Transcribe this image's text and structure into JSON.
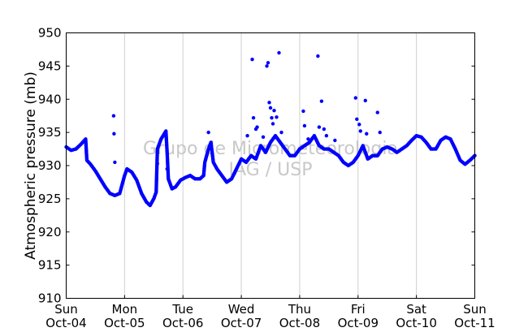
{
  "chart_data": {
    "type": "scatter",
    "title": "",
    "xlabel": "",
    "ylabel": "Atmospheric pressure (mb)",
    "ylim": [
      910,
      950
    ],
    "yticks": [
      910,
      915,
      920,
      925,
      930,
      935,
      940,
      945,
      950
    ],
    "xlim": [
      "2009-10-04T00:00",
      "2009-10-11T00:00"
    ],
    "xticks": [
      {
        "day": "Sun",
        "date": "Oct-04"
      },
      {
        "day": "Mon",
        "date": "Oct-05"
      },
      {
        "day": "Tue",
        "date": "Oct-06"
      },
      {
        "day": "Wed",
        "date": "Oct-07"
      },
      {
        "day": "Thu",
        "date": "Oct-08"
      },
      {
        "day": "Fri",
        "date": "Oct-09"
      },
      {
        "day": "Sat",
        "date": "Oct-10"
      },
      {
        "day": "Sun",
        "date": "Oct-11"
      }
    ],
    "grid": "vertical",
    "marker_color": "#0000ff",
    "watermark": [
      "Grupo de Micrometeorologia",
      "IAG / USP"
    ],
    "series": [
      {
        "trace": [
          [
            "2009-10-04T00:00",
            932.8
          ],
          [
            "2009-10-04T02:00",
            932.3
          ],
          [
            "2009-10-04T04:00",
            932.5
          ],
          [
            "2009-10-04T06:00",
            933.2
          ],
          [
            "2009-10-04T08:00",
            934.0
          ],
          [
            "2009-10-04T08:30",
            930.8
          ],
          [
            "2009-10-04T10:00",
            930.2
          ],
          [
            "2009-10-04T12:00",
            929.2
          ],
          [
            "2009-10-04T14:00",
            928.0
          ],
          [
            "2009-10-04T16:00",
            926.8
          ],
          [
            "2009-10-04T18:00",
            925.8
          ],
          [
            "2009-10-04T20:00",
            925.5
          ],
          [
            "2009-10-04T22:00",
            925.8
          ],
          [
            "2009-10-05T00:00",
            928.5
          ],
          [
            "2009-10-05T01:00",
            929.5
          ],
          [
            "2009-10-05T03:00",
            929.0
          ],
          [
            "2009-10-05T05:00",
            927.8
          ],
          [
            "2009-10-05T07:00",
            925.8
          ],
          [
            "2009-10-05T09:00",
            924.5
          ],
          [
            "2009-10-05T10:30",
            924.0
          ],
          [
            "2009-10-05T12:00",
            925.0
          ],
          [
            "2009-10-05T13:00",
            926.0
          ],
          [
            "2009-10-05T13:30",
            932.5
          ],
          [
            "2009-10-05T15:00",
            934.0
          ],
          [
            "2009-10-05T17:00",
            935.2
          ],
          [
            "2009-10-05T17:30",
            932.0
          ],
          [
            "2009-10-05T18:00",
            928.0
          ],
          [
            "2009-10-05T19:30",
            926.5
          ],
          [
            "2009-10-05T21:00",
            926.8
          ],
          [
            "2009-10-05T23:00",
            927.8
          ],
          [
            "2009-10-06T01:00",
            928.2
          ],
          [
            "2009-10-06T03:00",
            928.5
          ],
          [
            "2009-10-06T05:00",
            928.0
          ],
          [
            "2009-10-06T07:00",
            928.0
          ],
          [
            "2009-10-06T08:30",
            928.5
          ],
          [
            "2009-10-06T09:00",
            930.5
          ],
          [
            "2009-10-06T10:30",
            932.5
          ],
          [
            "2009-10-06T11:30",
            933.5
          ],
          [
            "2009-10-06T12:30",
            930.5
          ],
          [
            "2009-10-06T14:00",
            929.5
          ],
          [
            "2009-10-06T16:00",
            928.5
          ],
          [
            "2009-10-06T18:00",
            927.5
          ],
          [
            "2009-10-06T20:00",
            928.0
          ],
          [
            "2009-10-06T22:00",
            929.5
          ],
          [
            "2009-10-07T00:00",
            931.0
          ],
          [
            "2009-10-07T02:00",
            930.5
          ],
          [
            "2009-10-07T04:00",
            931.5
          ],
          [
            "2009-10-07T06:00",
            931.0
          ],
          [
            "2009-10-07T08:00",
            933.0
          ],
          [
            "2009-10-07T10:00",
            932.0
          ],
          [
            "2009-10-07T12:00",
            933.5
          ],
          [
            "2009-10-07T14:00",
            934.5
          ],
          [
            "2009-10-07T16:00",
            933.5
          ],
          [
            "2009-10-07T18:00",
            932.5
          ],
          [
            "2009-10-07T20:00",
            931.5
          ],
          [
            "2009-10-07T22:00",
            931.5
          ],
          [
            "2009-10-08T00:00",
            932.5
          ],
          [
            "2009-10-08T02:00",
            933.0
          ],
          [
            "2009-10-08T04:00",
            933.5
          ],
          [
            "2009-10-08T06:00",
            934.5
          ],
          [
            "2009-10-08T08:00",
            933.0
          ],
          [
            "2009-10-08T10:00",
            932.5
          ],
          [
            "2009-10-08T12:00",
            932.5
          ],
          [
            "2009-10-08T14:00",
            932.0
          ],
          [
            "2009-10-08T16:00",
            931.5
          ],
          [
            "2009-10-08T18:00",
            930.5
          ],
          [
            "2009-10-08T20:00",
            930.0
          ],
          [
            "2009-10-08T22:00",
            930.5
          ],
          [
            "2009-10-09T00:00",
            931.5
          ],
          [
            "2009-10-09T02:00",
            933.0
          ],
          [
            "2009-10-09T04:00",
            931.0
          ],
          [
            "2009-10-09T06:00",
            931.5
          ],
          [
            "2009-10-09T08:00",
            931.5
          ],
          [
            "2009-10-09T10:00",
            932.5
          ],
          [
            "2009-10-09T12:00",
            932.8
          ],
          [
            "2009-10-09T14:00",
            932.5
          ],
          [
            "2009-10-09T16:00",
            932.0
          ],
          [
            "2009-10-09T18:00",
            932.5
          ],
          [
            "2009-10-09T20:00",
            933.0
          ],
          [
            "2009-10-09T22:00",
            933.8
          ],
          [
            "2009-10-10T00:00",
            934.5
          ],
          [
            "2009-10-10T02:00",
            934.3
          ],
          [
            "2009-10-10T04:00",
            933.5
          ],
          [
            "2009-10-10T06:00",
            932.5
          ],
          [
            "2009-10-10T08:00",
            932.5
          ],
          [
            "2009-10-10T10:00",
            933.8
          ],
          [
            "2009-10-10T12:00",
            934.3
          ],
          [
            "2009-10-10T14:00",
            934.0
          ],
          [
            "2009-10-10T16:00",
            932.5
          ],
          [
            "2009-10-10T18:00",
            930.8
          ],
          [
            "2009-10-10T20:00",
            930.2
          ],
          [
            "2009-10-10T22:00",
            930.8
          ],
          [
            "2009-10-11T00:00",
            931.5
          ]
        ],
        "spikes": [
          [
            "2009-10-04T19:30",
            937.5
          ],
          [
            "2009-10-04T19:40",
            934.8
          ],
          [
            "2009-10-04T20:00",
            930.5
          ],
          [
            "2009-10-05T13:30",
            930.3
          ],
          [
            "2009-10-05T17:30",
            929.5
          ],
          [
            "2009-10-06T10:30",
            935.0
          ],
          [
            "2009-10-07T02:30",
            934.5
          ],
          [
            "2009-10-07T04:30",
            946.0
          ],
          [
            "2009-10-07T05:00",
            937.2
          ],
          [
            "2009-10-07T06:00",
            935.5
          ],
          [
            "2009-10-07T06:30",
            935.8
          ],
          [
            "2009-10-07T09:00",
            934.3
          ],
          [
            "2009-10-07T10:30",
            945.0
          ],
          [
            "2009-10-07T11:00",
            945.5
          ],
          [
            "2009-10-07T11:30",
            939.5
          ],
          [
            "2009-10-07T12:00",
            938.7
          ],
          [
            "2009-10-07T12:30",
            937.2
          ],
          [
            "2009-10-07T13:00",
            936.3
          ],
          [
            "2009-10-07T13:30",
            938.3
          ],
          [
            "2009-10-07T14:30",
            937.3
          ],
          [
            "2009-10-07T15:30",
            947.0
          ],
          [
            "2009-10-07T16:30",
            935.0
          ],
          [
            "2009-10-08T01:30",
            938.2
          ],
          [
            "2009-10-08T02:00",
            936.0
          ],
          [
            "2009-10-08T03:30",
            934.0
          ],
          [
            "2009-10-08T07:30",
            946.5
          ],
          [
            "2009-10-08T08:00",
            935.8
          ],
          [
            "2009-10-08T09:00",
            939.7
          ],
          [
            "2009-10-08T10:00",
            935.5
          ],
          [
            "2009-10-08T11:00",
            934.5
          ],
          [
            "2009-10-08T14:30",
            933.8
          ],
          [
            "2009-10-08T23:00",
            940.2
          ],
          [
            "2009-10-08T23:30",
            937.0
          ],
          [
            "2009-10-09T00:30",
            936.2
          ],
          [
            "2009-10-09T01:00",
            935.2
          ],
          [
            "2009-10-09T03:00",
            939.8
          ],
          [
            "2009-10-09T03:30",
            934.8
          ],
          [
            "2009-10-09T08:00",
            938.0
          ],
          [
            "2009-10-09T09:00",
            935.0
          ]
        ]
      }
    ]
  }
}
